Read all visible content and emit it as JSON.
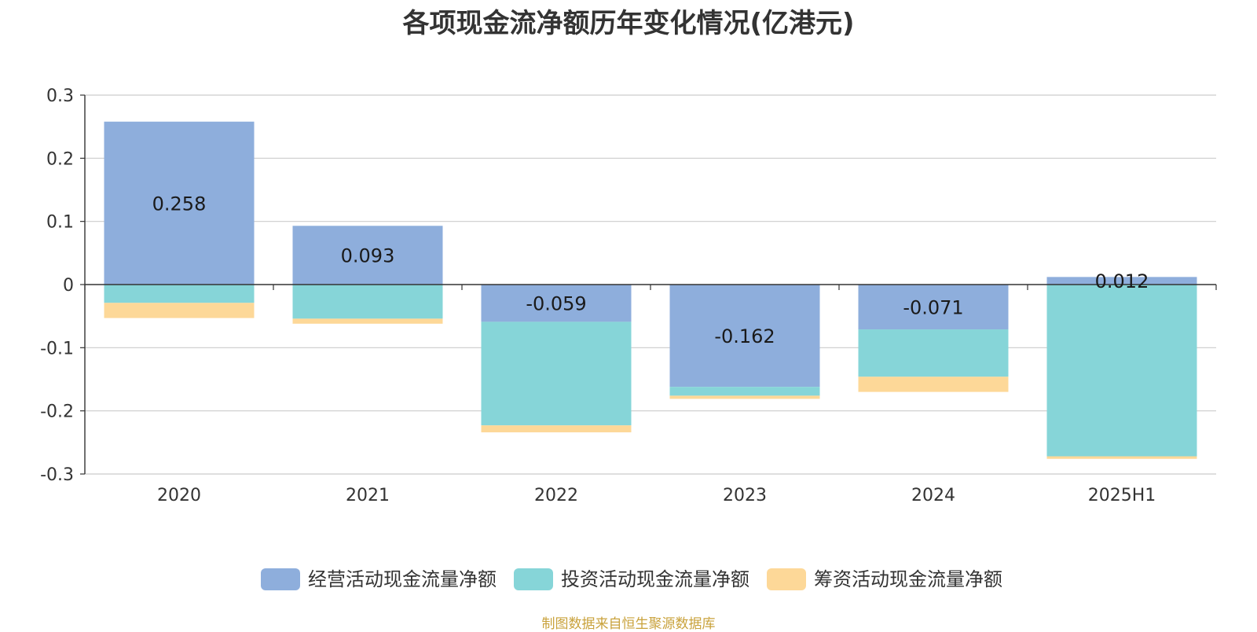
{
  "chart_data": {
    "type": "bar",
    "stacked": true,
    "title": "各项现金流净额历年变化情况(亿港元)",
    "categories": [
      "2020",
      "2021",
      "2022",
      "2023",
      "2024",
      "2025H1"
    ],
    "series": [
      {
        "name": "经营活动现金流量净额",
        "color": "#8eaedc",
        "values": [
          0.258,
          0.093,
          -0.059,
          -0.162,
          -0.071,
          0.012
        ]
      },
      {
        "name": "投资活动现金流量净额",
        "color": "#86d5d8",
        "values": [
          -0.029,
          -0.054,
          -0.164,
          -0.014,
          -0.075,
          -0.272
        ]
      },
      {
        "name": "筹资活动现金流量净额",
        "color": "#fdd898",
        "values": [
          -0.024,
          -0.008,
          -0.011,
          -0.005,
          -0.024,
          -0.004
        ]
      }
    ],
    "data_labels": [
      "0.258",
      "0.093",
      "-0.059",
      "-0.162",
      "-0.071",
      "0.012"
    ],
    "ylim": [
      -0.3,
      0.3
    ],
    "yticks": [
      0.3,
      0.2,
      0.1,
      0,
      -0.1,
      -0.2,
      -0.3
    ],
    "ytick_labels": [
      "0.3",
      "0.2",
      "0.1",
      "0",
      "-0.1",
      "-0.2",
      "-0.3"
    ],
    "grid": true,
    "legend_position": "bottom",
    "xlabel": "",
    "ylabel": ""
  },
  "source": "制图数据来自恒生聚源数据库"
}
